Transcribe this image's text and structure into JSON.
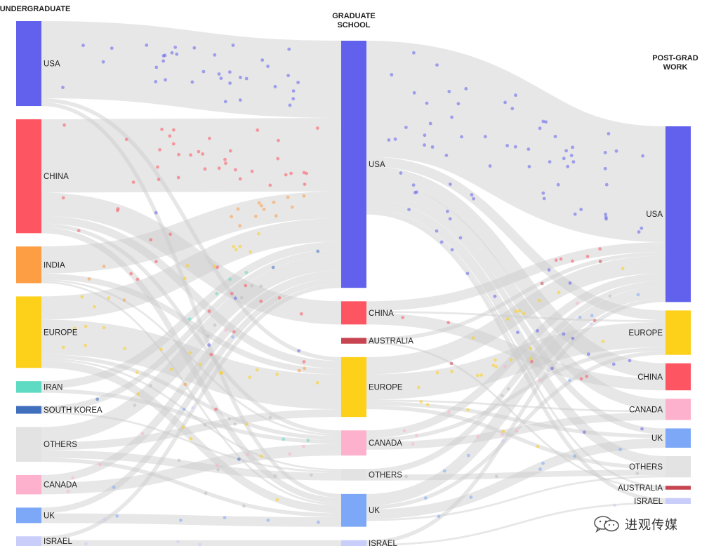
{
  "columns": [
    {
      "id": "undergrad",
      "title_lines": [
        "UNDERGRADUATE"
      ]
    },
    {
      "id": "grad",
      "title_lines": [
        "GRADUATE",
        "SCHOOL"
      ]
    },
    {
      "id": "work",
      "title_lines": [
        "POST-GRAD",
        "WORK"
      ]
    }
  ],
  "nodes": [
    {
      "id": "u_usa",
      "column": "undergrad",
      "label": "USA",
      "color": "#6161ee"
    },
    {
      "id": "u_china",
      "column": "undergrad",
      "label": "CHINA",
      "color": "#fe5562"
    },
    {
      "id": "u_india",
      "column": "undergrad",
      "label": "INDIA",
      "color": "#fd9d44"
    },
    {
      "id": "u_europe",
      "column": "undergrad",
      "label": "EUROPE",
      "color": "#fdd019"
    },
    {
      "id": "u_iran",
      "column": "undergrad",
      "label": "IRAN",
      "color": "#5fdbc4"
    },
    {
      "id": "u_skorea",
      "column": "undergrad",
      "label": "SOUTH KOREA",
      "color": "#3f6fbd"
    },
    {
      "id": "u_others",
      "column": "undergrad",
      "label": "OTHERS",
      "color": "#e3e3e3"
    },
    {
      "id": "u_canada",
      "column": "undergrad",
      "label": "CANADA",
      "color": "#fdb1cd"
    },
    {
      "id": "u_uk",
      "column": "undergrad",
      "label": "UK",
      "color": "#7ca8f7"
    },
    {
      "id": "u_israel",
      "column": "undergrad",
      "label": "ISRAEL",
      "color": "#c9cdfa"
    },
    {
      "id": "g_usa",
      "column": "grad",
      "label": "USA",
      "color": "#6161ee"
    },
    {
      "id": "g_china",
      "column": "grad",
      "label": "CHINA",
      "color": "#fe5562"
    },
    {
      "id": "g_australia",
      "column": "grad",
      "label": "AUSTRALIA",
      "color": "#c74550"
    },
    {
      "id": "g_europe",
      "column": "grad",
      "label": "EUROPE",
      "color": "#fdd019"
    },
    {
      "id": "g_canada",
      "column": "grad",
      "label": "CANADA",
      "color": "#fdb1cd"
    },
    {
      "id": "g_others",
      "column": "grad",
      "label": "OTHERS",
      "color": "#e3e3e3"
    },
    {
      "id": "g_uk",
      "column": "grad",
      "label": "UK",
      "color": "#7ca8f7"
    },
    {
      "id": "g_israel",
      "column": "grad",
      "label": "ISRAEL",
      "color": "#c9cdfa"
    },
    {
      "id": "w_usa",
      "column": "work",
      "label": "USA",
      "color": "#6161ee"
    },
    {
      "id": "w_europe",
      "column": "work",
      "label": "EUROPE",
      "color": "#fdd019"
    },
    {
      "id": "w_china",
      "column": "work",
      "label": "CHINA",
      "color": "#fe5562"
    },
    {
      "id": "w_canada",
      "column": "work",
      "label": "CANADA",
      "color": "#fdb1cd"
    },
    {
      "id": "w_uk",
      "column": "work",
      "label": "UK",
      "color": "#7ca8f7"
    },
    {
      "id": "w_others",
      "column": "work",
      "label": "OTHERS",
      "color": "#e3e3e3"
    },
    {
      "id": "w_australia",
      "column": "work",
      "label": "AUSTRALIA",
      "color": "#c74550"
    },
    {
      "id": "w_israel",
      "column": "work",
      "label": "ISRAEL",
      "color": "#c9cdfa"
    }
  ],
  "links": [
    {
      "source": "u_usa",
      "target": "g_usa",
      "value": 40
    },
    {
      "source": "u_usa",
      "target": "g_europe",
      "value": 2
    },
    {
      "source": "u_usa",
      "target": "g_uk",
      "value": 2
    },
    {
      "source": "u_china",
      "target": "g_usa",
      "value": 38
    },
    {
      "source": "u_china",
      "target": "g_china",
      "value": 12
    },
    {
      "source": "u_china",
      "target": "g_europe",
      "value": 4
    },
    {
      "source": "u_china",
      "target": "g_uk",
      "value": 3
    },
    {
      "source": "u_china",
      "target": "g_canada",
      "value": 2
    },
    {
      "source": "u_india",
      "target": "g_usa",
      "value": 14
    },
    {
      "source": "u_india",
      "target": "g_europe",
      "value": 3
    },
    {
      "source": "u_india",
      "target": "g_uk",
      "value": 1
    },
    {
      "source": "u_india",
      "target": "g_canada",
      "value": 1
    },
    {
      "source": "u_europe",
      "target": "g_europe",
      "value": 18
    },
    {
      "source": "u_europe",
      "target": "g_usa",
      "value": 12
    },
    {
      "source": "u_europe",
      "target": "g_uk",
      "value": 4
    },
    {
      "source": "u_europe",
      "target": "g_others",
      "value": 1
    },
    {
      "source": "u_europe",
      "target": "g_canada",
      "value": 2
    },
    {
      "source": "u_iran",
      "target": "g_usa",
      "value": 4
    },
    {
      "source": "u_iran",
      "target": "g_canada",
      "value": 2
    },
    {
      "source": "u_skorea",
      "target": "g_usa",
      "value": 3
    },
    {
      "source": "u_skorea",
      "target": "g_others",
      "value": 1
    },
    {
      "source": "u_others",
      "target": "g_usa",
      "value": 8
    },
    {
      "source": "u_others",
      "target": "g_europe",
      "value": 4
    },
    {
      "source": "u_others",
      "target": "g_others",
      "value": 4
    },
    {
      "source": "u_others",
      "target": "g_uk",
      "value": 2
    },
    {
      "source": "u_canada",
      "target": "g_canada",
      "value": 6
    },
    {
      "source": "u_canada",
      "target": "g_usa",
      "value": 4
    },
    {
      "source": "u_uk",
      "target": "g_uk",
      "value": 5
    },
    {
      "source": "u_uk",
      "target": "g_usa",
      "value": 3
    },
    {
      "source": "u_israel",
      "target": "g_israel",
      "value": 3
    },
    {
      "source": "u_israel",
      "target": "g_usa",
      "value": 2
    },
    {
      "source": "g_usa",
      "target": "w_usa",
      "value": 60
    },
    {
      "source": "g_usa",
      "target": "w_europe",
      "value": 5
    },
    {
      "source": "g_usa",
      "target": "w_china",
      "value": 8
    },
    {
      "source": "g_usa",
      "target": "w_canada",
      "value": 6
    },
    {
      "source": "g_usa",
      "target": "w_uk",
      "value": 3
    },
    {
      "source": "g_usa",
      "target": "w_others",
      "value": 5
    },
    {
      "source": "g_usa",
      "target": "w_australia",
      "value": 1
    },
    {
      "source": "g_usa",
      "target": "w_israel",
      "value": 2
    },
    {
      "source": "g_china",
      "target": "w_china",
      "value": 6
    },
    {
      "source": "g_china",
      "target": "w_usa",
      "value": 5
    },
    {
      "source": "g_china",
      "target": "w_europe",
      "value": 1
    },
    {
      "source": "g_australia",
      "target": "w_usa",
      "value": 2
    },
    {
      "source": "g_australia",
      "target": "w_australia",
      "value": 1
    },
    {
      "source": "g_europe",
      "target": "w_europe",
      "value": 13
    },
    {
      "source": "g_europe",
      "target": "w_usa",
      "value": 9
    },
    {
      "source": "g_europe",
      "target": "w_uk",
      "value": 2
    },
    {
      "source": "g_europe",
      "target": "w_canada",
      "value": 1
    },
    {
      "source": "g_europe",
      "target": "w_others",
      "value": 2
    },
    {
      "source": "g_canada",
      "target": "w_canada",
      "value": 4
    },
    {
      "source": "g_canada",
      "target": "w_usa",
      "value": 4
    },
    {
      "source": "g_canada",
      "target": "w_europe",
      "value": 2
    },
    {
      "source": "g_others",
      "target": "w_usa",
      "value": 3
    },
    {
      "source": "g_others",
      "target": "w_others",
      "value": 3
    },
    {
      "source": "g_uk",
      "target": "w_uk",
      "value": 5
    },
    {
      "source": "g_uk",
      "target": "w_usa",
      "value": 6
    },
    {
      "source": "g_uk",
      "target": "w_europe",
      "value": 2
    },
    {
      "source": "g_uk",
      "target": "w_others",
      "value": 1
    },
    {
      "source": "g_israel",
      "target": "w_usa",
      "value": 2
    },
    {
      "source": "g_israel",
      "target": "w_israel",
      "value": 1
    }
  ],
  "watermark": {
    "text": "进观传媒",
    "icon": "wechat-icon"
  }
}
